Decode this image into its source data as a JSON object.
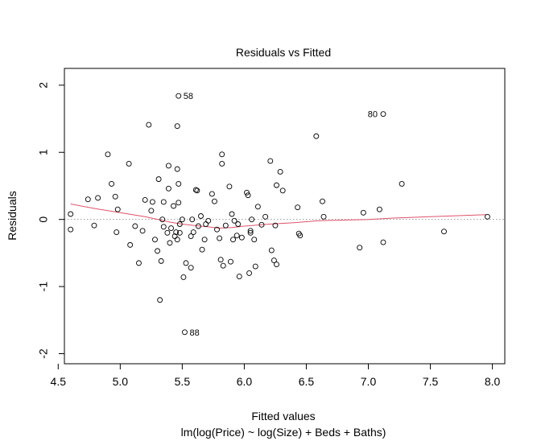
{
  "chart_data": {
    "type": "scatter",
    "title": "Residuals vs Fitted",
    "xlabel": "Fitted values",
    "xlabel_sub": "lm(log(Price) ~ log(Size) + Beds + Baths)",
    "ylabel": "Residuals",
    "xlim": [
      4.55,
      8.1
    ],
    "ylim": [
      -2.15,
      2.25
    ],
    "x_ticks": [
      4.5,
      5.0,
      5.5,
      6.0,
      6.5,
      7.0,
      7.5,
      8.0
    ],
    "x_tick_labels": [
      "4.5",
      "5.0",
      "5.5",
      "6.0",
      "6.5",
      "7.0",
      "7.5",
      "8.0"
    ],
    "y_ticks": [
      -2,
      -1,
      0,
      1,
      2
    ],
    "y_tick_labels": [
      "-2",
      "-1",
      "0",
      "1",
      "2"
    ],
    "reference_line": {
      "y": 0,
      "style": "dotted",
      "color": "#999999"
    },
    "smoother": {
      "color": "#df536b",
      "x": [
        4.6,
        4.8,
        5.0,
        5.2,
        5.4,
        5.5,
        5.6,
        5.7,
        5.8,
        5.9,
        6.0,
        6.2,
        6.4,
        6.6,
        6.8,
        7.0,
        7.2,
        7.5,
        7.95
      ],
      "y": [
        0.23,
        0.16,
        0.1,
        0.04,
        -0.04,
        -0.07,
        -0.09,
        -0.11,
        -0.13,
        -0.12,
        -0.1,
        -0.07,
        -0.05,
        -0.02,
        -0.01,
        0.0,
        0.02,
        0.04,
        0.07
      ]
    },
    "points": [
      {
        "x": 4.6,
        "y": 0.08
      },
      {
        "x": 4.6,
        "y": -0.15
      },
      {
        "x": 4.74,
        "y": 0.3
      },
      {
        "x": 4.79,
        "y": -0.09
      },
      {
        "x": 4.82,
        "y": 0.32
      },
      {
        "x": 4.9,
        "y": 0.97
      },
      {
        "x": 4.93,
        "y": 0.53
      },
      {
        "x": 4.96,
        "y": 0.34
      },
      {
        "x": 4.97,
        "y": -0.19
      },
      {
        "x": 4.98,
        "y": 0.15
      },
      {
        "x": 5.07,
        "y": 0.83
      },
      {
        "x": 5.08,
        "y": -0.38
      },
      {
        "x": 5.12,
        "y": -0.1
      },
      {
        "x": 5.15,
        "y": -0.65
      },
      {
        "x": 5.18,
        "y": -0.17
      },
      {
        "x": 5.2,
        "y": 0.29
      },
      {
        "x": 5.23,
        "y": 1.41
      },
      {
        "x": 5.26,
        "y": 0.26
      },
      {
        "x": 5.25,
        "y": 0.13
      },
      {
        "x": 5.28,
        "y": -0.3
      },
      {
        "x": 5.3,
        "y": -0.47
      },
      {
        "x": 5.31,
        "y": 0.6
      },
      {
        "x": 5.32,
        "y": -1.2
      },
      {
        "x": 5.33,
        "y": -0.62
      },
      {
        "x": 5.34,
        "y": 0.0
      },
      {
        "x": 5.35,
        "y": 0.26
      },
      {
        "x": 5.35,
        "y": -0.11
      },
      {
        "x": 5.38,
        "y": -0.2
      },
      {
        "x": 5.39,
        "y": 0.46
      },
      {
        "x": 5.39,
        "y": 0.8
      },
      {
        "x": 5.4,
        "y": -0.35
      },
      {
        "x": 5.41,
        "y": -0.13
      },
      {
        "x": 5.43,
        "y": 0.2
      },
      {
        "x": 5.44,
        "y": -0.25
      },
      {
        "x": 5.45,
        "y": -0.19
      },
      {
        "x": 5.46,
        "y": 0.75
      },
      {
        "x": 5.46,
        "y": 1.39
      },
      {
        "x": 5.46,
        "y": -0.3
      },
      {
        "x": 5.47,
        "y": 0.53
      },
      {
        "x": 5.48,
        "y": -0.07
      },
      {
        "x": 5.48,
        "y": -0.2
      },
      {
        "x": 5.47,
        "y": 0.25
      },
      {
        "x": 5.5,
        "y": 0.0
      },
      {
        "x": 5.51,
        "y": -0.86
      },
      {
        "x": 5.53,
        "y": -0.65
      },
      {
        "x": 5.57,
        "y": -0.25
      },
      {
        "x": 5.57,
        "y": -0.72
      },
      {
        "x": 5.58,
        "y": 0.0
      },
      {
        "x": 5.59,
        "y": -0.19
      },
      {
        "x": 5.61,
        "y": 0.44
      },
      {
        "x": 5.62,
        "y": 0.43
      },
      {
        "x": 5.63,
        "y": -0.1
      },
      {
        "x": 5.65,
        "y": 0.05
      },
      {
        "x": 5.66,
        "y": -0.45
      },
      {
        "x": 5.68,
        "y": -0.3
      },
      {
        "x": 5.69,
        "y": -0.07
      },
      {
        "x": 5.71,
        "y": -0.02
      },
      {
        "x": 5.74,
        "y": 0.38
      },
      {
        "x": 5.76,
        "y": 0.27
      },
      {
        "x": 5.78,
        "y": -0.15
      },
      {
        "x": 5.8,
        "y": -0.28
      },
      {
        "x": 5.81,
        "y": -0.6
      },
      {
        "x": 5.82,
        "y": 0.97
      },
      {
        "x": 5.82,
        "y": 0.83
      },
      {
        "x": 5.83,
        "y": -0.69
      },
      {
        "x": 5.85,
        "y": -0.09
      },
      {
        "x": 5.88,
        "y": 0.49
      },
      {
        "x": 5.89,
        "y": -0.63
      },
      {
        "x": 5.9,
        "y": 0.08
      },
      {
        "x": 5.91,
        "y": -0.3
      },
      {
        "x": 5.92,
        "y": -0.02
      },
      {
        "x": 5.94,
        "y": -0.24
      },
      {
        "x": 5.95,
        "y": -0.07
      },
      {
        "x": 5.96,
        "y": -0.85
      },
      {
        "x": 5.98,
        "y": -0.27
      },
      {
        "x": 6.02,
        "y": 0.4
      },
      {
        "x": 6.03,
        "y": 0.36
      },
      {
        "x": 6.04,
        "y": -0.8
      },
      {
        "x": 6.05,
        "y": -0.2
      },
      {
        "x": 6.05,
        "y": -0.17
      },
      {
        "x": 6.06,
        "y": 0.0
      },
      {
        "x": 6.08,
        "y": -0.3
      },
      {
        "x": 6.09,
        "y": -0.7
      },
      {
        "x": 6.11,
        "y": 0.19
      },
      {
        "x": 6.14,
        "y": -0.08
      },
      {
        "x": 6.17,
        "y": 0.04
      },
      {
        "x": 6.21,
        "y": 0.87
      },
      {
        "x": 6.22,
        "y": -0.46
      },
      {
        "x": 6.24,
        "y": -0.61
      },
      {
        "x": 6.25,
        "y": -0.09
      },
      {
        "x": 6.26,
        "y": 0.51
      },
      {
        "x": 6.26,
        "y": -0.67
      },
      {
        "x": 6.29,
        "y": 0.71
      },
      {
        "x": 6.31,
        "y": 0.43
      },
      {
        "x": 6.43,
        "y": 0.18
      },
      {
        "x": 6.44,
        "y": -0.21
      },
      {
        "x": 6.45,
        "y": -0.24
      },
      {
        "x": 6.58,
        "y": 1.24
      },
      {
        "x": 6.63,
        "y": 0.27
      },
      {
        "x": 6.64,
        "y": 0.04
      },
      {
        "x": 6.93,
        "y": -0.42
      },
      {
        "x": 6.96,
        "y": 0.1
      },
      {
        "x": 7.09,
        "y": 0.15
      },
      {
        "x": 7.12,
        "y": -0.34
      },
      {
        "x": 7.27,
        "y": 0.53
      },
      {
        "x": 7.61,
        "y": -0.18
      },
      {
        "x": 7.96,
        "y": 0.04
      },
      {
        "x": 5.47,
        "y": 1.84,
        "label": "58",
        "label_side": "right"
      },
      {
        "x": 7.12,
        "y": 1.57,
        "label": "80",
        "label_side": "left"
      },
      {
        "x": 5.52,
        "y": -1.68,
        "label": "88",
        "label_side": "right"
      }
    ]
  }
}
